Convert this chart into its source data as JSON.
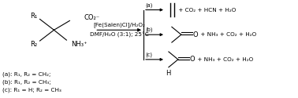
{
  "background_color": "#ffffff",
  "figsize": [
    3.78,
    1.25
  ],
  "dpi": 100,
  "legend_a": "(a): R₁, R₂ = CH₂;",
  "legend_b": "(b): R₁, R₂ = CH₃;",
  "legend_c": "(c): R₁ = H; R₂ = CH₃",
  "arrow_label_top": "[Fe(Salen)Cl]/H₂O₂",
  "arrow_label_bot": "DMF/H₂O (3:1); 25°C",
  "branch_a_label": "(a)",
  "branch_b_label": "(b)",
  "branch_c_label": "(c)",
  "product_a_text": " + CO₂ + HCN + H₂O",
  "product_b_text": "O + NH₃ + CO₂ + H₂O",
  "product_c_text": "O + NH₃ + CO₂ + H₂O",
  "font_size": 6.0,
  "sub_font": 5.2
}
